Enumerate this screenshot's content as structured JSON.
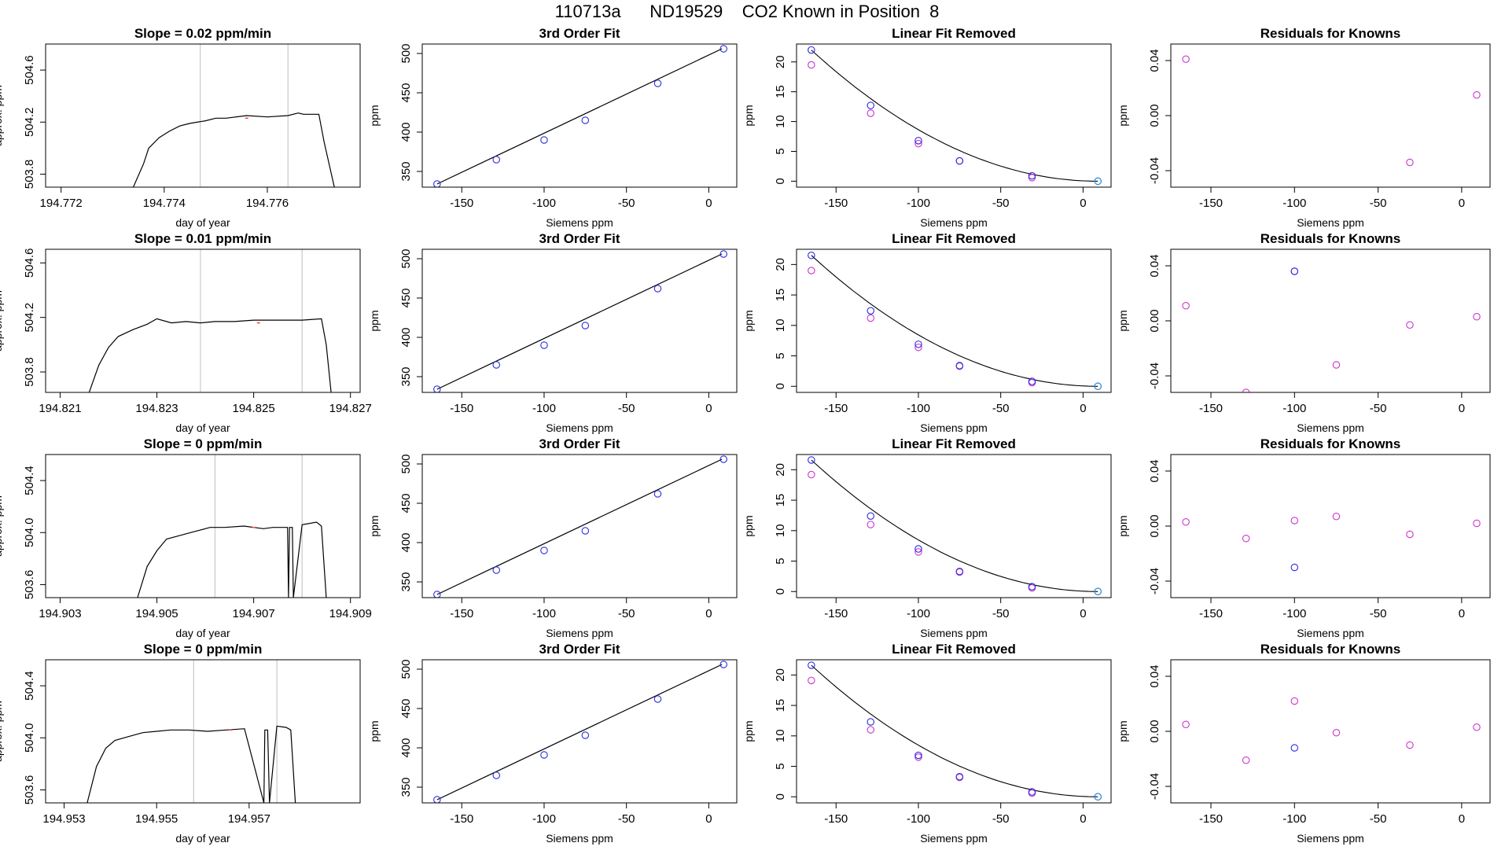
{
  "page": {
    "title": "110713a      ND19529    CO2 Known in Position  8"
  },
  "colors": {
    "axis": "#000000",
    "trace": "#000000",
    "vline": "#bebebe",
    "marker_blue": "#2b2be0",
    "marker_magenta": "#cc33cc",
    "marker_cyan": "#1a9bd8"
  },
  "chart_data": [
    {
      "id": "r1-ts",
      "type": "line",
      "title": "Slope =  0.02  ppm/min",
      "xlabel": "day of year",
      "ylabel": "approx. ppm",
      "xlim": [
        194.7717,
        194.7778
      ],
      "ylim": [
        503.7,
        504.8
      ],
      "xticks": [
        194.772,
        194.774,
        194.776
      ],
      "xtick_labels": [
        "194.772",
        "194.774",
        "194.776"
      ],
      "yticks": [
        503.8,
        504.2,
        504.6
      ],
      "ytick_labels": [
        "503.8",
        "504.2",
        "504.6"
      ],
      "vlines": [
        194.7747,
        194.7764
      ],
      "red_x": 194.7756,
      "x": [
        194.7734,
        194.7736,
        194.7737,
        194.7739,
        194.7741,
        194.7743,
        194.7745,
        194.7748,
        194.775,
        194.7752,
        194.7756,
        194.776,
        194.7764,
        194.7766,
        194.7767,
        194.777,
        194.7771,
        194.7773
      ],
      "y": [
        503.7,
        503.88,
        504.0,
        504.08,
        504.13,
        504.17,
        504.19,
        504.21,
        504.23,
        504.23,
        504.25,
        504.24,
        504.25,
        504.27,
        504.26,
        504.26,
        504.05,
        503.7
      ]
    },
    {
      "id": "r1-fit",
      "type": "scatter",
      "title": "3rd Order Fit",
      "xlabel": "Siemens ppm",
      "ylabel": "ppm",
      "xlim": [
        -174,
        17
      ],
      "ylim": [
        330,
        512
      ],
      "xticks": [
        -150,
        -100,
        -50,
        0
      ],
      "xtick_labels": [
        "-150",
        "-100",
        "-50",
        "0"
      ],
      "yticks": [
        350,
        400,
        450,
        500
      ],
      "ytick_labels": [
        "350",
        "400",
        "450",
        "500"
      ],
      "fit_x": [
        -165,
        8
      ],
      "fit_y": [
        334,
        506
      ],
      "points": {
        "x": [
          -165,
          -129,
          -100,
          -75,
          -31,
          9
        ],
        "y": [
          334,
          365,
          390,
          415,
          462,
          506
        ]
      }
    },
    {
      "id": "r1-lfr",
      "type": "scatter",
      "title": "Linear Fit Removed",
      "xlabel": "Siemens ppm",
      "ylabel": "ppm",
      "xlim": [
        -174,
        17
      ],
      "ylim": [
        -1,
        23
      ],
      "xticks": [
        -150,
        -100,
        -50,
        0
      ],
      "xtick_labels": [
        "-150",
        "-100",
        "-50",
        "0"
      ],
      "yticks": [
        0,
        5,
        10,
        15,
        20
      ],
      "ytick_labels": [
        "0",
        "5",
        "10",
        "15",
        "20"
      ],
      "curve": {
        "x0": -165,
        "x1": 9,
        "amplitude": 22.0
      },
      "blue": {
        "x": [
          -165,
          -129,
          -100,
          -75,
          -31,
          9
        ],
        "y": [
          22.0,
          12.7,
          6.8,
          3.4,
          0.9,
          0.0
        ]
      },
      "magenta": {
        "x": [
          -165,
          -129,
          -100,
          -75,
          -31,
          9
        ],
        "y": [
          19.5,
          11.4,
          6.3,
          3.4,
          0.6,
          0.0
        ]
      }
    },
    {
      "id": "r1-res",
      "type": "scatter",
      "title": "Residuals for Knowns",
      "xlabel": "Siemens ppm",
      "ylabel": "ppm",
      "xlim": [
        -174,
        17
      ],
      "ylim": [
        -0.052,
        0.052
      ],
      "xticks": [
        -150,
        -100,
        -50,
        0
      ],
      "xtick_labels": [
        "-150",
        "-100",
        "-50",
        "0"
      ],
      "yticks": [
        -0.04,
        0.0,
        0.04
      ],
      "ytick_labels": [
        "-0.04",
        "0.00",
        "0.04"
      ],
      "blue": {
        "x": [],
        "y": []
      },
      "magenta": {
        "x": [
          -165,
          -31,
          9
        ],
        "y": [
          0.041,
          -0.034,
          0.015
        ]
      }
    },
    {
      "id": "r2-ts",
      "type": "line",
      "title": "Slope =  0.01  ppm/min",
      "xlabel": "day of year",
      "ylabel": "approx. ppm",
      "xlim": [
        194.8207,
        194.8272
      ],
      "ylim": [
        503.65,
        504.7
      ],
      "xticks": [
        194.821,
        194.823,
        194.825,
        194.827
      ],
      "xtick_labels": [
        "194.821",
        "194.823",
        "194.825",
        "194.827"
      ],
      "yticks": [
        503.8,
        504.2,
        504.6
      ],
      "ytick_labels": [
        "503.8",
        "504.2",
        "504.6"
      ],
      "vlines": [
        194.8239,
        194.826
      ],
      "red_x": 194.8251,
      "x": [
        194.8216,
        194.8218,
        194.822,
        194.8222,
        194.8225,
        194.8228,
        194.823,
        194.8233,
        194.8236,
        194.8239,
        194.8242,
        194.8246,
        194.825,
        194.8255,
        194.826,
        194.8264,
        194.8265,
        194.8266
      ],
      "y": [
        503.65,
        503.85,
        503.98,
        504.06,
        504.11,
        504.15,
        504.19,
        504.16,
        504.17,
        504.16,
        504.17,
        504.17,
        504.18,
        504.18,
        504.18,
        504.19,
        504.0,
        503.65
      ]
    },
    {
      "id": "r2-fit",
      "type": "scatter",
      "title": "3rd Order Fit",
      "xlabel": "Siemens ppm",
      "ylabel": "ppm",
      "xlim": [
        -174,
        17
      ],
      "ylim": [
        330,
        512
      ],
      "xticks": [
        -150,
        -100,
        -50,
        0
      ],
      "xtick_labels": [
        "-150",
        "-100",
        "-50",
        "0"
      ],
      "yticks": [
        350,
        400,
        450,
        500
      ],
      "ytick_labels": [
        "350",
        "400",
        "450",
        "500"
      ],
      "fit_x": [
        -165,
        8
      ],
      "fit_y": [
        334,
        506
      ],
      "points": {
        "x": [
          -165,
          -129,
          -100,
          -75,
          -31,
          9
        ],
        "y": [
          334,
          365,
          390,
          415,
          462,
          506
        ]
      }
    },
    {
      "id": "r2-lfr",
      "type": "scatter",
      "title": "Linear Fit Removed",
      "xlabel": "Siemens ppm",
      "ylabel": "ppm",
      "xlim": [
        -174,
        17
      ],
      "ylim": [
        -1,
        22.5
      ],
      "xticks": [
        -150,
        -100,
        -50,
        0
      ],
      "xtick_labels": [
        "-150",
        "-100",
        "-50",
        "0"
      ],
      "yticks": [
        0,
        5,
        10,
        15,
        20
      ],
      "ytick_labels": [
        "0",
        "5",
        "10",
        "15",
        "20"
      ],
      "curve": {
        "x0": -165,
        "x1": 9,
        "amplitude": 21.5
      },
      "blue": {
        "x": [
          -165,
          -129,
          -100,
          -75,
          -31,
          9
        ],
        "y": [
          21.5,
          12.4,
          6.9,
          3.4,
          0.8,
          0.0
        ]
      },
      "magenta": {
        "x": [
          -165,
          -129,
          -100,
          -75,
          -31,
          9
        ],
        "y": [
          19.0,
          11.2,
          6.4,
          3.3,
          0.6,
          0.0
        ]
      }
    },
    {
      "id": "r2-res",
      "type": "scatter",
      "title": "Residuals for Knowns",
      "xlabel": "Siemens ppm",
      "ylabel": "ppm",
      "xlim": [
        -174,
        17
      ],
      "ylim": [
        -0.052,
        0.052
      ],
      "xticks": [
        -150,
        -100,
        -50,
        0
      ],
      "xtick_labels": [
        "-150",
        "-100",
        "-50",
        "0"
      ],
      "yticks": [
        -0.04,
        0.0,
        0.04
      ],
      "ytick_labels": [
        "-0.04",
        "0.00",
        "0.04"
      ],
      "blue": {
        "x": [
          -100
        ],
        "y": [
          0.036
        ]
      },
      "magenta": {
        "x": [
          -165,
          -129,
          -100,
          -75,
          -31,
          9
        ],
        "y": [
          0.011,
          -0.052,
          0.036,
          -0.032,
          -0.003,
          0.003
        ]
      }
    },
    {
      "id": "r3-ts",
      "type": "line",
      "title": "Slope =  0  ppm/min",
      "xlabel": "day of year",
      "ylabel": "approx. ppm",
      "xlim": [
        194.9027,
        194.9092
      ],
      "ylim": [
        503.5,
        504.6
      ],
      "xticks": [
        194.903,
        194.905,
        194.907,
        194.909
      ],
      "xtick_labels": [
        "194.903",
        "194.905",
        "194.907",
        "194.909"
      ],
      "yticks": [
        503.6,
        504.0,
        504.4
      ],
      "ytick_labels": [
        "503.6",
        "504.0",
        "504.4"
      ],
      "vlines": [
        194.9062,
        194.908
      ],
      "red_x": 194.907,
      "x": [
        194.9046,
        194.9048,
        194.905,
        194.9052,
        194.9055,
        194.9058,
        194.9061,
        194.9064,
        194.9068,
        194.9072,
        194.9074,
        194.9077,
        194.90772,
        194.90774,
        194.9078,
        194.90782,
        194.908,
        194.9083,
        194.9084,
        194.9085
      ],
      "y": [
        503.5,
        503.74,
        503.86,
        503.95,
        503.98,
        504.01,
        504.04,
        504.04,
        504.05,
        504.03,
        504.04,
        504.04,
        503.5,
        504.04,
        504.04,
        503.5,
        504.06,
        504.08,
        504.05,
        503.5
      ]
    },
    {
      "id": "r3-fit",
      "type": "scatter",
      "title": "3rd Order Fit",
      "xlabel": "Siemens ppm",
      "ylabel": "ppm",
      "xlim": [
        -174,
        17
      ],
      "ylim": [
        330,
        512
      ],
      "xticks": [
        -150,
        -100,
        -50,
        0
      ],
      "xtick_labels": [
        "-150",
        "-100",
        "-50",
        "0"
      ],
      "yticks": [
        350,
        400,
        450,
        500
      ],
      "ytick_labels": [
        "350",
        "400",
        "450",
        "500"
      ],
      "fit_x": [
        -165,
        8
      ],
      "fit_y": [
        334,
        506
      ],
      "points": {
        "x": [
          -165,
          -129,
          -100,
          -75,
          -31,
          9
        ],
        "y": [
          334,
          365,
          390,
          415,
          462,
          506
        ]
      }
    },
    {
      "id": "r3-lfr",
      "type": "scatter",
      "title": "Linear Fit Removed",
      "xlabel": "Siemens ppm",
      "ylabel": "ppm",
      "xlim": [
        -174,
        17
      ],
      "ylim": [
        -1,
        22.5
      ],
      "xticks": [
        -150,
        -100,
        -50,
        0
      ],
      "xtick_labels": [
        "-150",
        "-100",
        "-50",
        "0"
      ],
      "yticks": [
        0,
        5,
        10,
        15,
        20
      ],
      "ytick_labels": [
        "0",
        "5",
        "10",
        "15",
        "20"
      ],
      "curve": {
        "x0": -165,
        "x1": 9,
        "amplitude": 21.6
      },
      "blue": {
        "x": [
          -165,
          -129,
          -100,
          -75,
          -31,
          9
        ],
        "y": [
          21.6,
          12.4,
          7.0,
          3.3,
          0.8,
          0.0
        ]
      },
      "magenta": {
        "x": [
          -165,
          -129,
          -100,
          -75,
          -31,
          9
        ],
        "y": [
          19.2,
          11.0,
          6.5,
          3.2,
          0.6,
          0.0
        ]
      }
    },
    {
      "id": "r3-res",
      "type": "scatter",
      "title": "Residuals for Knowns",
      "xlabel": "Siemens ppm",
      "ylabel": "ppm",
      "xlim": [
        -174,
        17
      ],
      "ylim": [
        -0.052,
        0.052
      ],
      "xticks": [
        -150,
        -100,
        -50,
        0
      ],
      "xtick_labels": [
        "-150",
        "-100",
        "-50",
        "0"
      ],
      "yticks": [
        -0.04,
        0.0,
        0.04
      ],
      "ytick_labels": [
        "-0.04",
        "0.00",
        "0.04"
      ],
      "blue": {
        "x": [
          -100
        ],
        "y": [
          -0.03
        ]
      },
      "magenta": {
        "x": [
          -165,
          -129,
          -100,
          -75,
          -31,
          9
        ],
        "y": [
          0.003,
          -0.009,
          0.004,
          0.007,
          -0.006,
          0.002
        ]
      }
    },
    {
      "id": "r4-ts",
      "type": "line",
      "title": "Slope =  0  ppm/min",
      "xlabel": "day of year",
      "ylabel": "approx. ppm",
      "xlim": [
        194.9526,
        194.9594
      ],
      "ylim": [
        503.5,
        504.6
      ],
      "xticks": [
        194.953,
        194.955,
        194.957
      ],
      "xtick_labels": [
        "194.953",
        "194.955",
        "194.957"
      ],
      "yticks": [
        503.6,
        504.0,
        504.4
      ],
      "ytick_labels": [
        "503.6",
        "504.0",
        "504.4"
      ],
      "vlines": [
        194.9558,
        194.9576
      ],
      "red_x": 194.9566,
      "x": [
        194.9535,
        194.9537,
        194.9539,
        194.9541,
        194.9544,
        194.9547,
        194.955,
        194.9553,
        194.9557,
        194.9561,
        194.9565,
        194.9569,
        194.95732,
        194.95734,
        194.9574,
        194.95744,
        194.9576,
        194.9578,
        194.9579,
        194.958
      ],
      "y": [
        503.5,
        503.78,
        503.92,
        503.98,
        504.01,
        504.04,
        504.05,
        504.06,
        504.06,
        504.05,
        504.06,
        504.07,
        503.5,
        504.06,
        504.06,
        503.5,
        504.09,
        504.08,
        504.06,
        503.5
      ]
    },
    {
      "id": "r4-fit",
      "type": "scatter",
      "title": "3rd Order Fit",
      "xlabel": "Siemens ppm",
      "ylabel": "ppm",
      "xlim": [
        -174,
        17
      ],
      "ylim": [
        330,
        512
      ],
      "xticks": [
        -150,
        -100,
        -50,
        0
      ],
      "xtick_labels": [
        "-150",
        "-100",
        "-50",
        "0"
      ],
      "yticks": [
        350,
        400,
        450,
        500
      ],
      "ytick_labels": [
        "350",
        "400",
        "450",
        "500"
      ],
      "fit_x": [
        -165,
        8
      ],
      "fit_y": [
        334,
        506
      ],
      "points": {
        "x": [
          -165,
          -129,
          -100,
          -75,
          -31,
          9
        ],
        "y": [
          334,
          365,
          391,
          416,
          462,
          506
        ]
      }
    },
    {
      "id": "r4-lfr",
      "type": "scatter",
      "title": "Linear Fit Removed",
      "xlabel": "Siemens ppm",
      "ylabel": "ppm",
      "xlim": [
        -174,
        17
      ],
      "ylim": [
        -1,
        22.5
      ],
      "xticks": [
        -150,
        -100,
        -50,
        0
      ],
      "xtick_labels": [
        "-150",
        "-100",
        "-50",
        "0"
      ],
      "yticks": [
        0,
        5,
        10,
        15,
        20
      ],
      "ytick_labels": [
        "0",
        "5",
        "10",
        "15",
        "20"
      ],
      "curve": {
        "x0": -165,
        "x1": 9,
        "amplitude": 21.6
      },
      "blue": {
        "x": [
          -165,
          -129,
          -100,
          -75,
          -31,
          9
        ],
        "y": [
          21.6,
          12.3,
          6.8,
          3.3,
          0.8,
          0.0
        ]
      },
      "magenta": {
        "x": [
          -165,
          -129,
          -100,
          -75,
          -31,
          9
        ],
        "y": [
          19.1,
          11.0,
          6.5,
          3.2,
          0.6,
          0.0
        ]
      }
    },
    {
      "id": "r4-res",
      "type": "scatter",
      "title": "Residuals for Knowns",
      "xlabel": "Siemens ppm",
      "ylabel": "ppm",
      "xlim": [
        -174,
        17
      ],
      "ylim": [
        -0.052,
        0.052
      ],
      "xticks": [
        -150,
        -100,
        -50,
        0
      ],
      "xtick_labels": [
        "-150",
        "-100",
        "-50",
        "0"
      ],
      "yticks": [
        -0.04,
        0.0,
        0.04
      ],
      "ytick_labels": [
        "-0.04",
        "0.00",
        "0.04"
      ],
      "blue": {
        "x": [
          -100
        ],
        "y": [
          -0.012
        ]
      },
      "magenta": {
        "x": [
          -165,
          -129,
          -100,
          -75,
          -31,
          9
        ],
        "y": [
          0.005,
          -0.021,
          0.022,
          -0.001,
          -0.01,
          0.003
        ]
      }
    }
  ]
}
